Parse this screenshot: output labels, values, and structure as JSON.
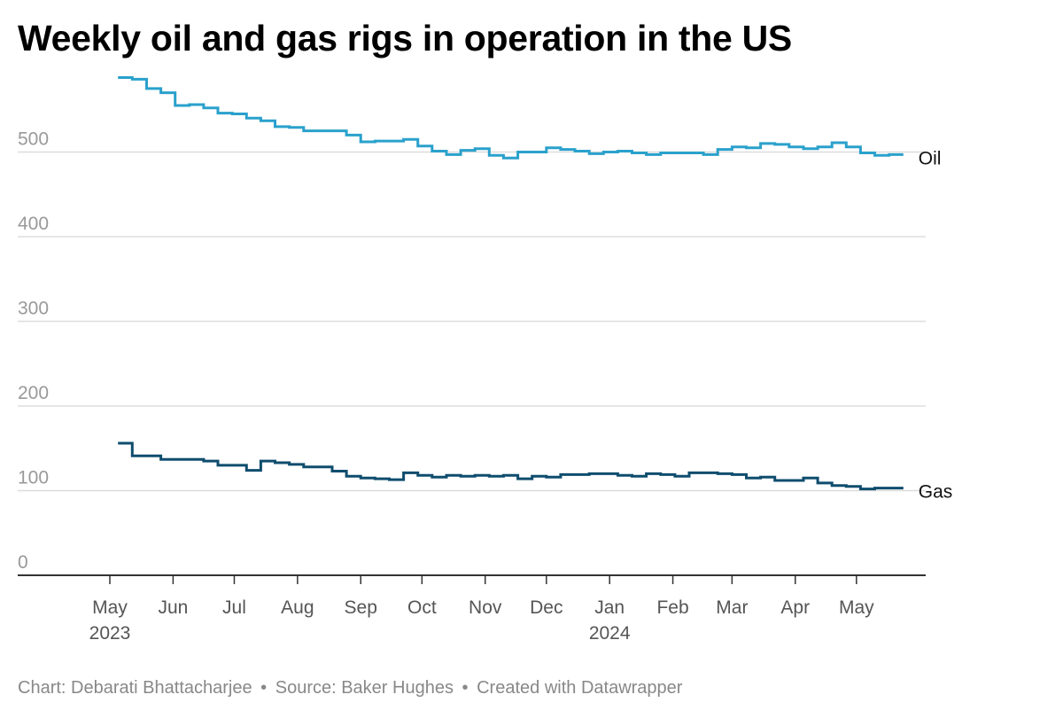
{
  "title": "Weekly oil and gas rigs in operation in the US",
  "footer": {
    "chart_credit": "Chart: Debarati Bhattacharjee",
    "source": "Source: Baker Hughes",
    "created": "Created with Datawrapper",
    "separator": "•"
  },
  "colors": {
    "oil": "#2aa1cc",
    "gas": "#0f4d6e",
    "grid": "#dddddd",
    "tick_label": "#999999",
    "axis": "#333333"
  },
  "chart_data": {
    "type": "line",
    "step": true,
    "title": "Weekly oil and gas rigs in operation in the US",
    "y_ticks": [
      "0",
      "100",
      "200",
      "300",
      "400",
      "500"
    ],
    "ylim": [
      0,
      600
    ],
    "xlim": [
      "2023-05-01",
      "2024-05-28"
    ],
    "x_ticks": [
      {
        "date": "2023-05-01",
        "label": "May",
        "year": "2023"
      },
      {
        "date": "2023-06-01",
        "label": "Jun"
      },
      {
        "date": "2023-07-01",
        "label": "Jul"
      },
      {
        "date": "2023-08-01",
        "label": "Aug"
      },
      {
        "date": "2023-09-01",
        "label": "Sep"
      },
      {
        "date": "2023-10-01",
        "label": "Oct"
      },
      {
        "date": "2023-11-01",
        "label": "Nov"
      },
      {
        "date": "2023-12-01",
        "label": "Dec"
      },
      {
        "date": "2024-01-01",
        "label": "Jan",
        "year": "2024"
      },
      {
        "date": "2024-02-01",
        "label": "Feb"
      },
      {
        "date": "2024-03-01",
        "label": "Mar"
      },
      {
        "date": "2024-04-01",
        "label": "Apr"
      },
      {
        "date": "2024-05-01",
        "label": "May"
      }
    ],
    "series": [
      {
        "name": "Oil",
        "color": "#2aa1cc",
        "points": [
          [
            "2023-05-05",
            588
          ],
          [
            "2023-05-12",
            586
          ],
          [
            "2023-05-19",
            575
          ],
          [
            "2023-05-26",
            570
          ],
          [
            "2023-06-02",
            555
          ],
          [
            "2023-06-09",
            556
          ],
          [
            "2023-06-16",
            552
          ],
          [
            "2023-06-23",
            546
          ],
          [
            "2023-06-30",
            545
          ],
          [
            "2023-07-07",
            540
          ],
          [
            "2023-07-14",
            537
          ],
          [
            "2023-07-21",
            530
          ],
          [
            "2023-07-28",
            529
          ],
          [
            "2023-08-04",
            525
          ],
          [
            "2023-08-11",
            525
          ],
          [
            "2023-08-18",
            525
          ],
          [
            "2023-08-25",
            520
          ],
          [
            "2023-09-01",
            512
          ],
          [
            "2023-09-08",
            513
          ],
          [
            "2023-09-15",
            513
          ],
          [
            "2023-09-22",
            515
          ],
          [
            "2023-09-29",
            507
          ],
          [
            "2023-10-06",
            501
          ],
          [
            "2023-10-13",
            497
          ],
          [
            "2023-10-20",
            502
          ],
          [
            "2023-10-27",
            504
          ],
          [
            "2023-11-03",
            496
          ],
          [
            "2023-11-10",
            493
          ],
          [
            "2023-11-17",
            500
          ],
          [
            "2023-11-24",
            500
          ],
          [
            "2023-12-01",
            505
          ],
          [
            "2023-12-08",
            503
          ],
          [
            "2023-12-15",
            501
          ],
          [
            "2023-12-22",
            498
          ],
          [
            "2023-12-29",
            500
          ],
          [
            "2024-01-05",
            501
          ],
          [
            "2024-01-12",
            499
          ],
          [
            "2024-01-19",
            497
          ],
          [
            "2024-01-26",
            499
          ],
          [
            "2024-02-02",
            499
          ],
          [
            "2024-02-09",
            499
          ],
          [
            "2024-02-16",
            497
          ],
          [
            "2024-02-23",
            503
          ],
          [
            "2024-03-01",
            506
          ],
          [
            "2024-03-08",
            505
          ],
          [
            "2024-03-15",
            510
          ],
          [
            "2024-03-22",
            509
          ],
          [
            "2024-03-29",
            506
          ],
          [
            "2024-04-05",
            504
          ],
          [
            "2024-04-12",
            506
          ],
          [
            "2024-04-19",
            511
          ],
          [
            "2024-04-26",
            506
          ],
          [
            "2024-05-03",
            499
          ],
          [
            "2024-05-10",
            496
          ],
          [
            "2024-05-17",
            497
          ]
        ]
      },
      {
        "name": "Gas",
        "color": "#0f4d6e",
        "points": [
          [
            "2023-05-05",
            156
          ],
          [
            "2023-05-12",
            141
          ],
          [
            "2023-05-19",
            141
          ],
          [
            "2023-05-26",
            137
          ],
          [
            "2023-06-02",
            137
          ],
          [
            "2023-06-09",
            137
          ],
          [
            "2023-06-16",
            135
          ],
          [
            "2023-06-23",
            130
          ],
          [
            "2023-06-30",
            130
          ],
          [
            "2023-07-07",
            124
          ],
          [
            "2023-07-14",
            135
          ],
          [
            "2023-07-21",
            133
          ],
          [
            "2023-07-28",
            131
          ],
          [
            "2023-08-04",
            128
          ],
          [
            "2023-08-11",
            128
          ],
          [
            "2023-08-18",
            123
          ],
          [
            "2023-08-25",
            117
          ],
          [
            "2023-09-01",
            115
          ],
          [
            "2023-09-08",
            114
          ],
          [
            "2023-09-15",
            113
          ],
          [
            "2023-09-22",
            121
          ],
          [
            "2023-09-29",
            118
          ],
          [
            "2023-10-06",
            116
          ],
          [
            "2023-10-13",
            118
          ],
          [
            "2023-10-20",
            117
          ],
          [
            "2023-10-27",
            118
          ],
          [
            "2023-11-03",
            117
          ],
          [
            "2023-11-10",
            118
          ],
          [
            "2023-11-17",
            114
          ],
          [
            "2023-11-24",
            117
          ],
          [
            "2023-12-01",
            116
          ],
          [
            "2023-12-08",
            119
          ],
          [
            "2023-12-15",
            119
          ],
          [
            "2023-12-22",
            120
          ],
          [
            "2023-12-29",
            120
          ],
          [
            "2024-01-05",
            118
          ],
          [
            "2024-01-12",
            117
          ],
          [
            "2024-01-19",
            120
          ],
          [
            "2024-01-26",
            119
          ],
          [
            "2024-02-02",
            117
          ],
          [
            "2024-02-09",
            121
          ],
          [
            "2024-02-16",
            121
          ],
          [
            "2024-02-23",
            120
          ],
          [
            "2024-03-01",
            119
          ],
          [
            "2024-03-08",
            115
          ],
          [
            "2024-03-15",
            116
          ],
          [
            "2024-03-22",
            112
          ],
          [
            "2024-03-29",
            112
          ],
          [
            "2024-04-05",
            115
          ],
          [
            "2024-04-12",
            109
          ],
          [
            "2024-04-19",
            106
          ],
          [
            "2024-04-26",
            105
          ],
          [
            "2024-05-03",
            102
          ],
          [
            "2024-05-10",
            103
          ],
          [
            "2024-05-17",
            103
          ]
        ]
      }
    ]
  }
}
